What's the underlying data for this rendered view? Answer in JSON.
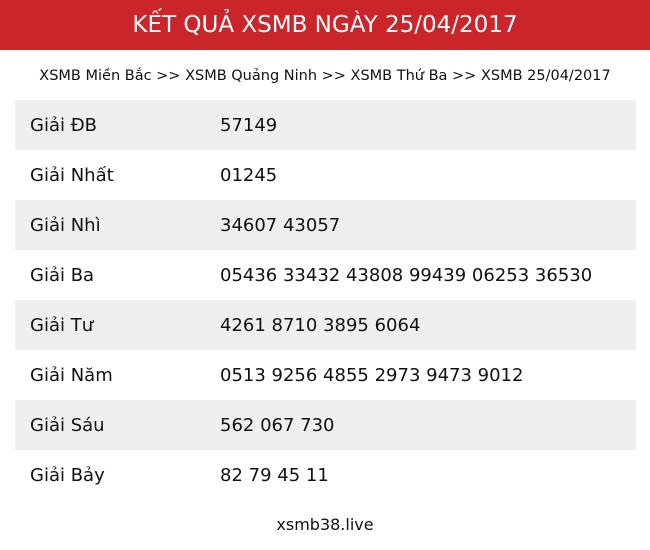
{
  "header": {
    "title": "KẾT QUẢ XSMB NGÀY 25/04/2017"
  },
  "breadcrumb": "XSMB Miền Bắc >> XSMB Quảng Ninh >> XSMB Thứ Ba >> XSMB 25/04/2017",
  "table": {
    "rows": [
      [
        "Giải ĐB",
        "57149"
      ],
      [
        "Giải Nhất",
        "01245"
      ],
      [
        "Giải Nhì",
        "34607 43057"
      ],
      [
        "Giải Ba",
        "05436 33432 43808 99439 06253 36530"
      ],
      [
        "Giải Tư",
        "4261 8710 3895 6064"
      ],
      [
        "Giải Năm",
        "0513 9256 4855 2973 9473 9012"
      ],
      [
        "Giải Sáu",
        "562 067 730"
      ],
      [
        "Giải Bảy",
        "82 79 45 11"
      ]
    ]
  },
  "footer": "xsmb38.live"
}
